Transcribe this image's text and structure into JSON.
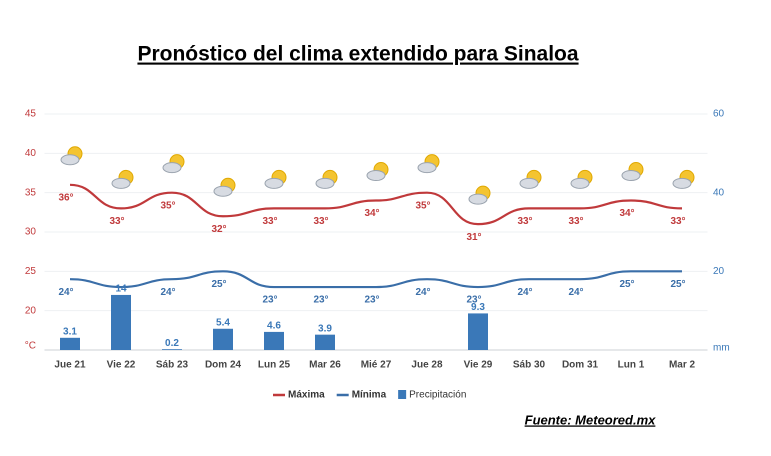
{
  "title": "Pronóstico del clima extendido para Sinaloa",
  "source": "Fuente: Meteored.mx",
  "chart_data": {
    "type": "line",
    "categories": [
      "Jue 21",
      "Vie 22",
      "Sáb 23",
      "Dom 24",
      "Lun 25",
      "Mar 26",
      "Mié 27",
      "Jue 28",
      "Vie 29",
      "Sáb 30",
      "Dom 31",
      "Lun 1",
      "Mar 2"
    ],
    "y_label": "°C",
    "y2_label": "mm",
    "ylim": [
      15,
      45
    ],
    "yticks": [
      20,
      25,
      30,
      35,
      40,
      45
    ],
    "y2lim": [
      0,
      60
    ],
    "y2ticks": [
      20,
      40,
      60
    ],
    "series": [
      {
        "name": "Máxima",
        "type": "line",
        "color": "#c0393b",
        "values": [
          36,
          33,
          35,
          32,
          33,
          33,
          34,
          35,
          31,
          33,
          33,
          34,
          33
        ],
        "value_labels": [
          "36°",
          "33°",
          "35°",
          "32°",
          "33°",
          "33°",
          "34°",
          "35°",
          "31°",
          "33°",
          "33°",
          "34°",
          "33°"
        ]
      },
      {
        "name": "Mínima",
        "type": "line",
        "color": "#3a6ea8",
        "values": [
          24,
          23,
          24,
          25,
          23,
          23,
          23,
          24,
          23,
          24,
          24,
          25,
          25
        ],
        "value_labels": [
          "24°",
          null,
          "24°",
          "25°",
          "23°",
          "23°",
          "23°",
          "24°",
          "23°",
          "24°",
          "24°",
          "25°",
          "25°"
        ]
      },
      {
        "name": "Precipitación",
        "type": "bar",
        "axis": "y2",
        "color": "#3a78b8",
        "values": [
          3.1,
          14,
          0.2,
          5.4,
          4.6,
          3.9,
          null,
          null,
          9.3,
          null,
          null,
          null,
          null
        ]
      }
    ]
  }
}
